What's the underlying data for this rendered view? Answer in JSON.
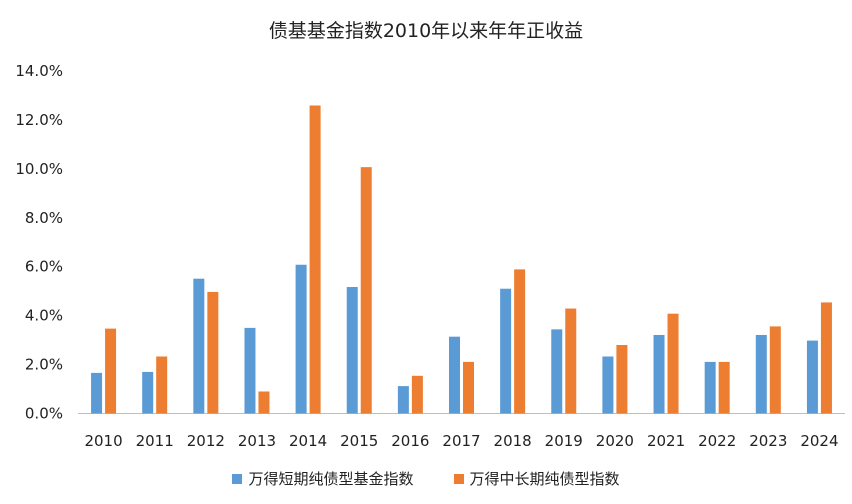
{
  "chart_data": {
    "type": "bar",
    "title": "债基基金指数2010年以来年年正收益",
    "xlabel": "",
    "ylabel": "",
    "ylim": [
      0,
      14
    ],
    "y_ticks": [
      "0.0%",
      "2.0%",
      "4.0%",
      "6.0%",
      "8.0%",
      "10.0%",
      "12.0%",
      "14.0%"
    ],
    "grid": false,
    "legend_position": "bottom",
    "categories": [
      "2010",
      "2011",
      "2012",
      "2013",
      "2014",
      "2015",
      "2016",
      "2017",
      "2018",
      "2019",
      "2020",
      "2021",
      "2022",
      "2023",
      "2024"
    ],
    "series": [
      {
        "name": "万得短期纯债型基金指数",
        "color": "#5B9BD5",
        "values": [
          1.66,
          1.7,
          5.51,
          3.5,
          6.08,
          5.17,
          1.12,
          3.14,
          5.1,
          3.44,
          2.33,
          3.21,
          2.11,
          3.21,
          2.98
        ]
      },
      {
        "name": "万得中长期纯债型指数",
        "color": "#ED7D31",
        "values": [
          3.47,
          2.33,
          4.97,
          0.9,
          12.59,
          10.07,
          1.54,
          2.11,
          5.89,
          4.29,
          2.8,
          4.08,
          2.11,
          3.56,
          4.54
        ]
      }
    ]
  }
}
